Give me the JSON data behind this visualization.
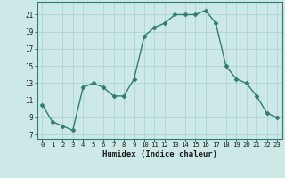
{
  "x": [
    0,
    1,
    2,
    3,
    4,
    5,
    6,
    7,
    8,
    9,
    10,
    11,
    12,
    13,
    14,
    15,
    16,
    17,
    18,
    19,
    20,
    21,
    22,
    23
  ],
  "y": [
    10.5,
    8.5,
    8.0,
    7.5,
    12.5,
    13.0,
    12.5,
    11.5,
    11.5,
    13.5,
    18.5,
    19.5,
    20.0,
    21.0,
    21.0,
    21.0,
    21.5,
    20.0,
    15.0,
    13.5,
    13.0,
    11.5,
    9.5,
    9.0
  ],
  "line_color": "#2e7d6e",
  "marker": "D",
  "marker_size": 2.5,
  "bg_color": "#cce9e8",
  "grid_color": "#aed4d3",
  "xlabel": "Humidex (Indice chaleur)",
  "ylim": [
    6.5,
    22.5
  ],
  "xlim": [
    -0.5,
    23.5
  ],
  "yticks": [
    7,
    9,
    11,
    13,
    15,
    17,
    19,
    21
  ],
  "xticks": [
    0,
    1,
    2,
    3,
    4,
    5,
    6,
    7,
    8,
    9,
    10,
    11,
    12,
    13,
    14,
    15,
    16,
    17,
    18,
    19,
    20,
    21,
    22,
    23
  ]
}
